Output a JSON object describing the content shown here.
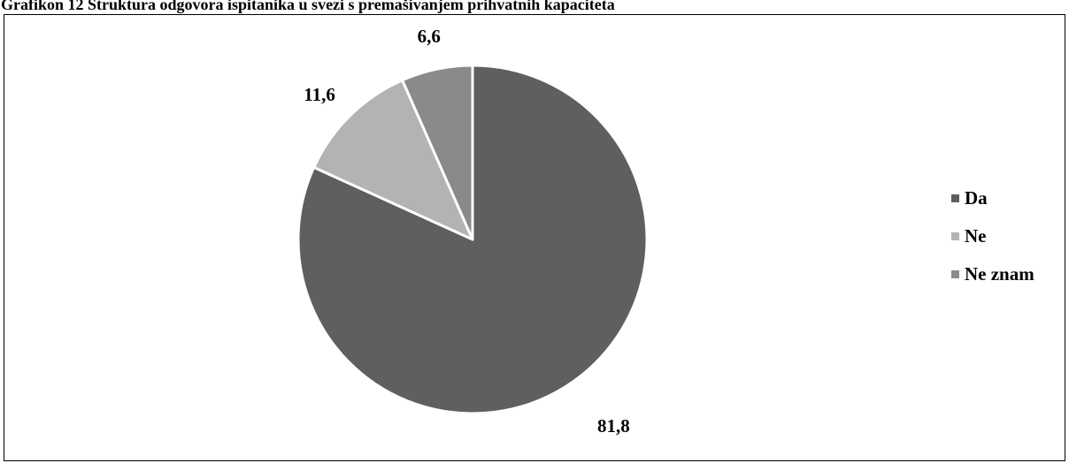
{
  "chart_data": {
    "type": "pie",
    "title": "Grafikon 12 Struktura odgovora ispitanika u svezi s premašivanjem prihvatnih kapaciteta",
    "series": [
      {
        "name": "Da",
        "value": 81.8,
        "label": "81,8",
        "color": "#5f5f5f"
      },
      {
        "name": "Ne",
        "value": 11.6,
        "label": "11,6",
        "color": "#b3b3b3"
      },
      {
        "name": "Ne znam",
        "value": 6.6,
        "label": "6,6",
        "color": "#8a8a8a"
      }
    ],
    "legend_position": "right",
    "slice_border_color": "#ffffff"
  }
}
